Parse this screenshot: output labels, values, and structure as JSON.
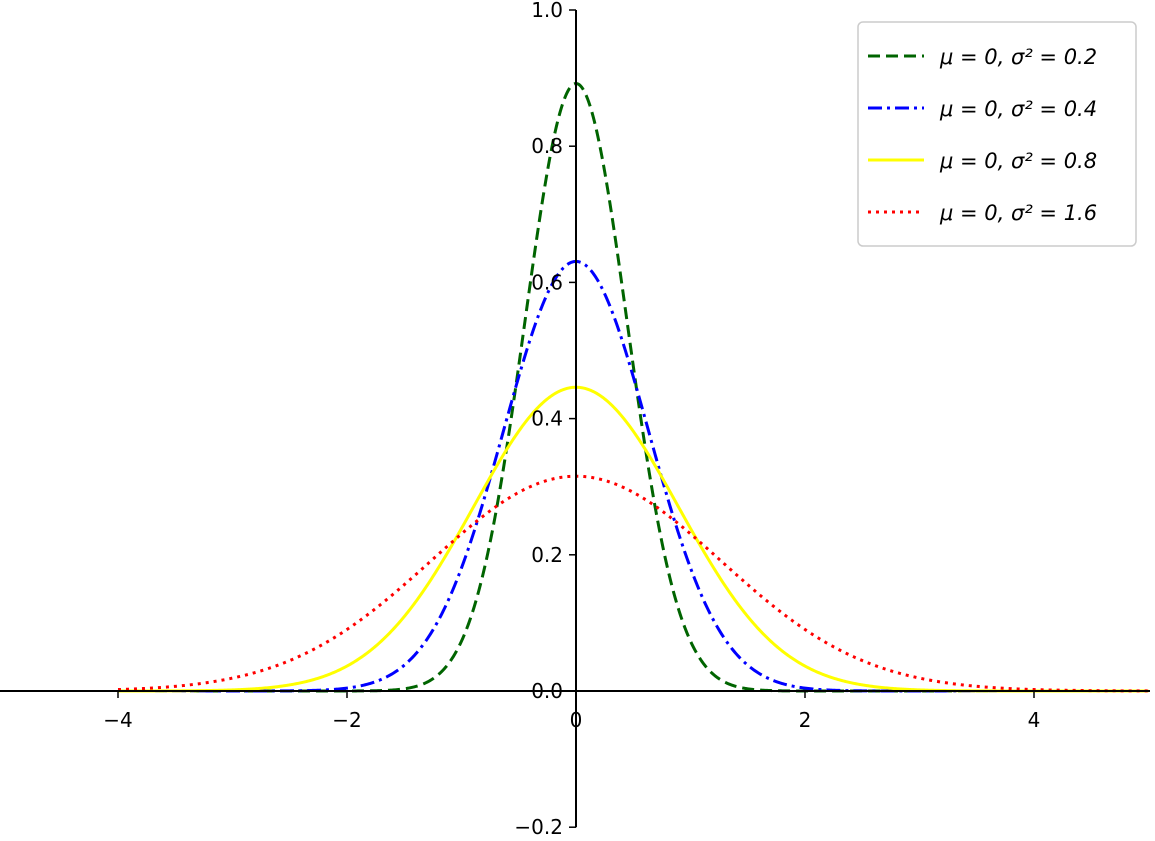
{
  "chart_data": {
    "type": "line",
    "title": "",
    "xlabel": "",
    "ylabel": "",
    "xlim": [
      -5,
      5
    ],
    "ylim": [
      -0.2,
      1.0
    ],
    "x_range": [
      -4,
      5
    ],
    "grid": false,
    "legend_position": "top-right",
    "x_ticks": [
      -4,
      -2,
      0,
      2,
      4
    ],
    "y_ticks": [
      -0.2,
      0.0,
      0.2,
      0.4,
      0.6,
      0.8,
      1.0
    ],
    "x_tick_labels": [
      "−4",
      "−2",
      "0",
      "2",
      "4"
    ],
    "y_tick_labels": [
      "−0.2",
      "0.0",
      "0.2",
      "0.4",
      "0.6",
      "0.8",
      "1.0"
    ],
    "series": [
      {
        "name": "μ = 0, σ² = 0.2",
        "mu": 0,
        "variance": 0.2,
        "color": "#006400",
        "style": "dashed"
      },
      {
        "name": "μ = 0, σ² = 0.4",
        "mu": 0,
        "variance": 0.4,
        "color": "#0000ff",
        "style": "dashdot"
      },
      {
        "name": "μ = 0, σ² = 0.8",
        "mu": 0,
        "variance": 0.8,
        "color": "#ffff00",
        "style": "solid"
      },
      {
        "name": "μ = 0, σ² = 1.6",
        "mu": 0,
        "variance": 1.6,
        "color": "#ff0000",
        "style": "dotted"
      }
    ]
  }
}
